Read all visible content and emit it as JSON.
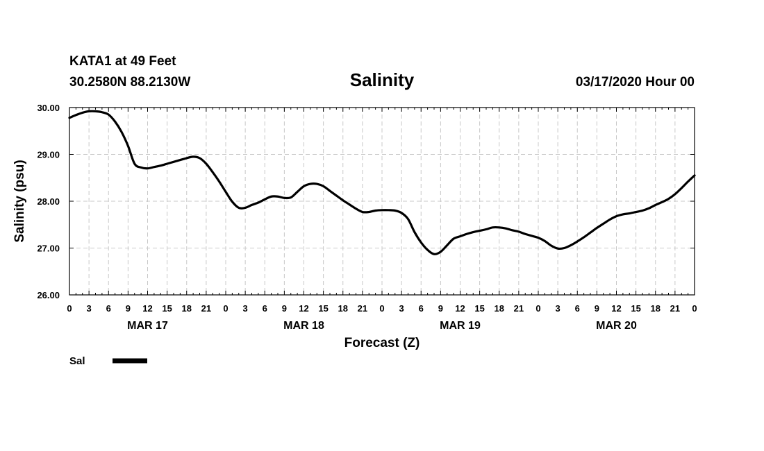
{
  "header": {
    "station": "KATA1 at 49 Feet",
    "location": "30.2580N 88.2130W",
    "title": "Salinity",
    "run": "03/17/2020 Hour 00"
  },
  "chart_data": {
    "type": "line",
    "title": "Salinity",
    "xlabel": "Forecast (Z)",
    "ylabel": "Salinity (psu)",
    "ylim": [
      26,
      30
    ],
    "xlim": [
      0,
      96
    ],
    "grid": true,
    "y_ticks": [
      "26.00",
      "27.00",
      "28.00",
      "29.00",
      "30.00"
    ],
    "x_tick_labels": [
      "0",
      "3",
      "6",
      "9",
      "12",
      "15",
      "18",
      "21",
      "0",
      "3",
      "6",
      "9",
      "12",
      "15",
      "18",
      "21",
      "0",
      "3",
      "6",
      "9",
      "12",
      "15",
      "18",
      "21",
      "0",
      "3",
      "6",
      "9",
      "12",
      "15",
      "18",
      "21",
      "0"
    ],
    "day_labels": [
      {
        "label": "MAR 17",
        "hour": 12
      },
      {
        "label": "MAR 18",
        "hour": 36
      },
      {
        "label": "MAR 19",
        "hour": 60
      },
      {
        "label": "MAR 20",
        "hour": 84
      }
    ],
    "legend_position": "bottom-left",
    "series": [
      {
        "name": "Sal",
        "color": "#000000",
        "x": [
          0,
          1,
          2,
          3,
          4,
          5,
          6,
          7,
          8,
          9,
          10,
          11,
          12,
          13,
          14,
          15,
          16,
          17,
          18,
          19,
          20,
          21,
          22,
          23,
          24,
          25,
          26,
          27,
          28,
          29,
          30,
          31,
          32,
          33,
          34,
          35,
          36,
          37,
          38,
          39,
          40,
          41,
          42,
          43,
          44,
          45,
          46,
          47,
          48,
          49,
          50,
          51,
          52,
          53,
          54,
          55,
          56,
          57,
          58,
          59,
          60,
          61,
          62,
          63,
          64,
          65,
          66,
          67,
          68,
          69,
          70,
          71,
          72,
          73,
          74,
          75,
          76,
          77,
          78,
          79,
          80,
          81,
          82,
          83,
          84,
          85,
          86,
          87,
          88,
          89,
          90,
          91,
          92,
          93,
          94,
          95,
          96
        ],
        "values": [
          29.78,
          29.84,
          29.89,
          29.92,
          29.92,
          29.9,
          29.85,
          29.7,
          29.48,
          29.18,
          28.8,
          28.72,
          28.7,
          28.73,
          28.76,
          28.8,
          28.84,
          28.88,
          28.92,
          28.95,
          28.92,
          28.8,
          28.62,
          28.42,
          28.2,
          27.99,
          27.86,
          27.86,
          27.92,
          27.97,
          28.04,
          28.1,
          28.1,
          28.07,
          28.08,
          28.2,
          28.32,
          28.37,
          28.37,
          28.32,
          28.22,
          28.12,
          28.02,
          27.93,
          27.84,
          27.77,
          27.77,
          27.8,
          27.81,
          27.81,
          27.8,
          27.75,
          27.62,
          27.34,
          27.12,
          26.96,
          26.87,
          26.92,
          27.06,
          27.2,
          27.25,
          27.3,
          27.34,
          27.37,
          27.4,
          27.44,
          27.44,
          27.42,
          27.38,
          27.35,
          27.3,
          27.26,
          27.22,
          27.15,
          27.05,
          26.99,
          27.0,
          27.06,
          27.14,
          27.23,
          27.33,
          27.43,
          27.52,
          27.61,
          27.68,
          27.72,
          27.74,
          27.77,
          27.8,
          27.85,
          27.92,
          27.98,
          28.05,
          28.15,
          28.28,
          28.42,
          28.55
        ]
      }
    ]
  }
}
